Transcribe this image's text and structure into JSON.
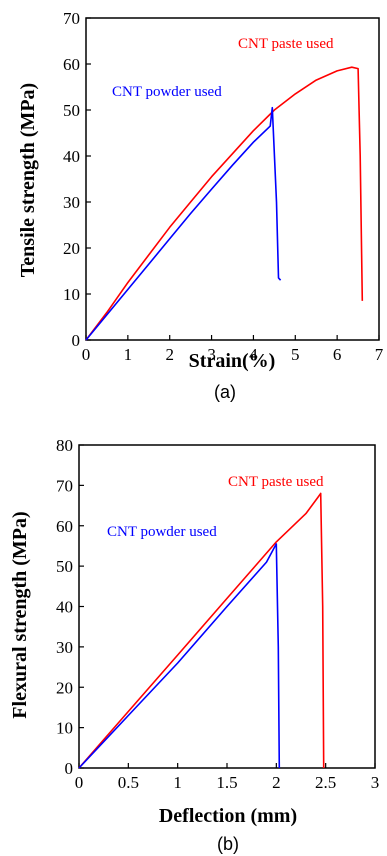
{
  "chart_data": [
    {
      "type": "line",
      "panel_label": "(a)",
      "xlabel": "Strain(%)",
      "ylabel": "Tensile strength (MPa)",
      "xlim": [
        0,
        7
      ],
      "ylim": [
        0,
        70
      ],
      "xticks": [
        "0",
        "1",
        "2",
        "3",
        "4",
        "5",
        "6",
        "7"
      ],
      "yticks": [
        "0",
        "10",
        "20",
        "30",
        "40",
        "50",
        "60",
        "70"
      ],
      "grid": false,
      "series": [
        {
          "name": "CNT paste used",
          "color": "#ff0000",
          "points": [
            [
              0,
              0
            ],
            [
              0.5,
              6
            ],
            [
              1,
              12.5
            ],
            [
              1.5,
              18.5
            ],
            [
              2,
              24.5
            ],
            [
              2.5,
              30
            ],
            [
              3,
              35.5
            ],
            [
              3.5,
              40.5
            ],
            [
              4,
              45.5
            ],
            [
              4.5,
              50
            ],
            [
              5,
              53.5
            ],
            [
              5.5,
              56.5
            ],
            [
              6,
              58.5
            ],
            [
              6.35,
              59.3
            ],
            [
              6.5,
              59
            ],
            [
              6.55,
              40
            ],
            [
              6.6,
              8.5
            ]
          ]
        },
        {
          "name": "CNT powder used",
          "color": "#0000ff",
          "points": [
            [
              0,
              0
            ],
            [
              0.5,
              5.5
            ],
            [
              1,
              11
            ],
            [
              1.5,
              16.5
            ],
            [
              2,
              22
            ],
            [
              2.5,
              27.5
            ],
            [
              3,
              32.8
            ],
            [
              3.5,
              38
            ],
            [
              4,
              43
            ],
            [
              4.4,
              46.5
            ],
            [
              4.45,
              50.5
            ],
            [
              4.55,
              30
            ],
            [
              4.6,
              13.5
            ],
            [
              4.65,
              13
            ]
          ]
        }
      ],
      "annotations": [
        {
          "text": "CNT paste used",
          "color": "#ff0000"
        },
        {
          "text": "CNT powder used",
          "color": "#0000ff"
        }
      ]
    },
    {
      "type": "line",
      "panel_label": "(b)",
      "xlabel": "Deflection (mm)",
      "ylabel": "Flexural strength (MPa)",
      "xlim": [
        0,
        3
      ],
      "ylim": [
        0,
        80
      ],
      "xticks": [
        "0",
        "0.5",
        "1",
        "1.5",
        "2",
        "2.5",
        "3"
      ],
      "yticks": [
        "0",
        "10",
        "20",
        "30",
        "40",
        "50",
        "60",
        "70",
        "80"
      ],
      "grid": false,
      "series": [
        {
          "name": "CNT paste used",
          "color": "#ff0000",
          "points": [
            [
              0,
              0
            ],
            [
              0.5,
              14
            ],
            [
              1,
              28
            ],
            [
              1.5,
              42
            ],
            [
              2,
              56
            ],
            [
              2.3,
              63
            ],
            [
              2.42,
              67
            ],
            [
              2.45,
              68
            ],
            [
              2.47,
              40
            ],
            [
              2.48,
              0
            ]
          ]
        },
        {
          "name": "CNT powder used",
          "color": "#0000ff",
          "points": [
            [
              0,
              0
            ],
            [
              0.5,
              13
            ],
            [
              1,
              26
            ],
            [
              1.5,
              40
            ],
            [
              1.9,
              51
            ],
            [
              2,
              55.5
            ],
            [
              2.02,
              30
            ],
            [
              2.03,
              0
            ]
          ]
        }
      ],
      "annotations": [
        {
          "text": "CNT paste used",
          "color": "#ff0000"
        },
        {
          "text": "CNT powder used",
          "color": "#0000ff"
        }
      ]
    }
  ]
}
